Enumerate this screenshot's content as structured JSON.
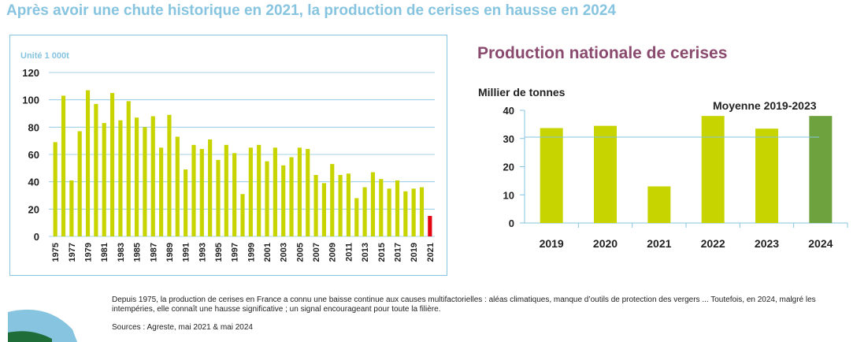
{
  "header": {
    "title": "Après avoir une chute historique en 2021, la production de cerises en hausse en 2024"
  },
  "left_chart": {
    "unit_label": "Unité 1 000t"
  },
  "right_chart": {
    "title": "Production nationale de cerises",
    "ylabel": "Millier de tonnes",
    "mean_label": "Moyenne 2019-2023"
  },
  "footer": {
    "text": "Depuis 1975, la production de cerises en France a connu une baisse continue aux causes multifactorielles : aléas climatiques, manque d’outils de protection des vergers ... Toutefois, en 2024, malgré les intempéries, elle connaît une hausse significative ; un signal encourageant pour toute la filière.",
    "sources": "Sources : Agreste, mai 2021 & mai 2024"
  },
  "colors": {
    "bar": "#c8d400",
    "highlight_red": "#e30613",
    "highlight_green": "#6ea23f",
    "title_blue": "#86c4e0",
    "title_purple": "#8a4a6e"
  },
  "chart_data": [
    {
      "type": "bar",
      "title": "",
      "ylabel": "Unité 1 000t",
      "xlabel": "",
      "ylim": [
        0,
        120
      ],
      "yticks": [
        0,
        20,
        40,
        60,
        80,
        100,
        120
      ],
      "grid": true,
      "categories": [
        "1975",
        "1976",
        "1977",
        "1978",
        "1979",
        "1980",
        "1981",
        "1982",
        "1983",
        "1984",
        "1985",
        "1986",
        "1987",
        "1988",
        "1989",
        "1990",
        "1991",
        "1992",
        "1993",
        "1994",
        "1995",
        "1996",
        "1997",
        "1998",
        "1999",
        "2000",
        "2001",
        "2002",
        "2003",
        "2004",
        "2005",
        "2006",
        "2007",
        "2008",
        "2009",
        "2010",
        "2011",
        "2012",
        "2013",
        "2014",
        "2015",
        "2016",
        "2017",
        "2018",
        "2019",
        "2020",
        "2021"
      ],
      "tick_labels": [
        "1975",
        "1977",
        "1979",
        "1981",
        "1983",
        "1985",
        "1987",
        "1989",
        "1991",
        "1993",
        "1995",
        "1997",
        "1999",
        "2001",
        "2003",
        "2005",
        "2007",
        "2009",
        "2011",
        "2013",
        "2015",
        "2017",
        "2019",
        "2021"
      ],
      "values": [
        69,
        103,
        41,
        77,
        107,
        97,
        83,
        105,
        85,
        99,
        87,
        80,
        88,
        65,
        89,
        73,
        49,
        67,
        64,
        71,
        56,
        67,
        61,
        31,
        65,
        67,
        55,
        65,
        52,
        58,
        65,
        64,
        45,
        39,
        53,
        45,
        46,
        28,
        36,
        47,
        42,
        35,
        41,
        33,
        35,
        36,
        15
      ],
      "highlight": {
        "category": "2021",
        "color": "#e30613"
      }
    },
    {
      "type": "bar",
      "title": "Production nationale de cerises",
      "ylabel": "Millier de tonnes",
      "xlabel": "",
      "ylim": [
        0,
        40
      ],
      "yticks": [
        0,
        10,
        20,
        30,
        40
      ],
      "grid": false,
      "categories": [
        "2019",
        "2020",
        "2021",
        "2022",
        "2023",
        "2024"
      ],
      "values": [
        33.7,
        34.5,
        13,
        38,
        33.5,
        38
      ],
      "reference_line": {
        "label": "Moyenne 2019-2023",
        "value": 30.5
      },
      "highlight": {
        "category": "2024",
        "color": "#6ea23f"
      }
    }
  ]
}
